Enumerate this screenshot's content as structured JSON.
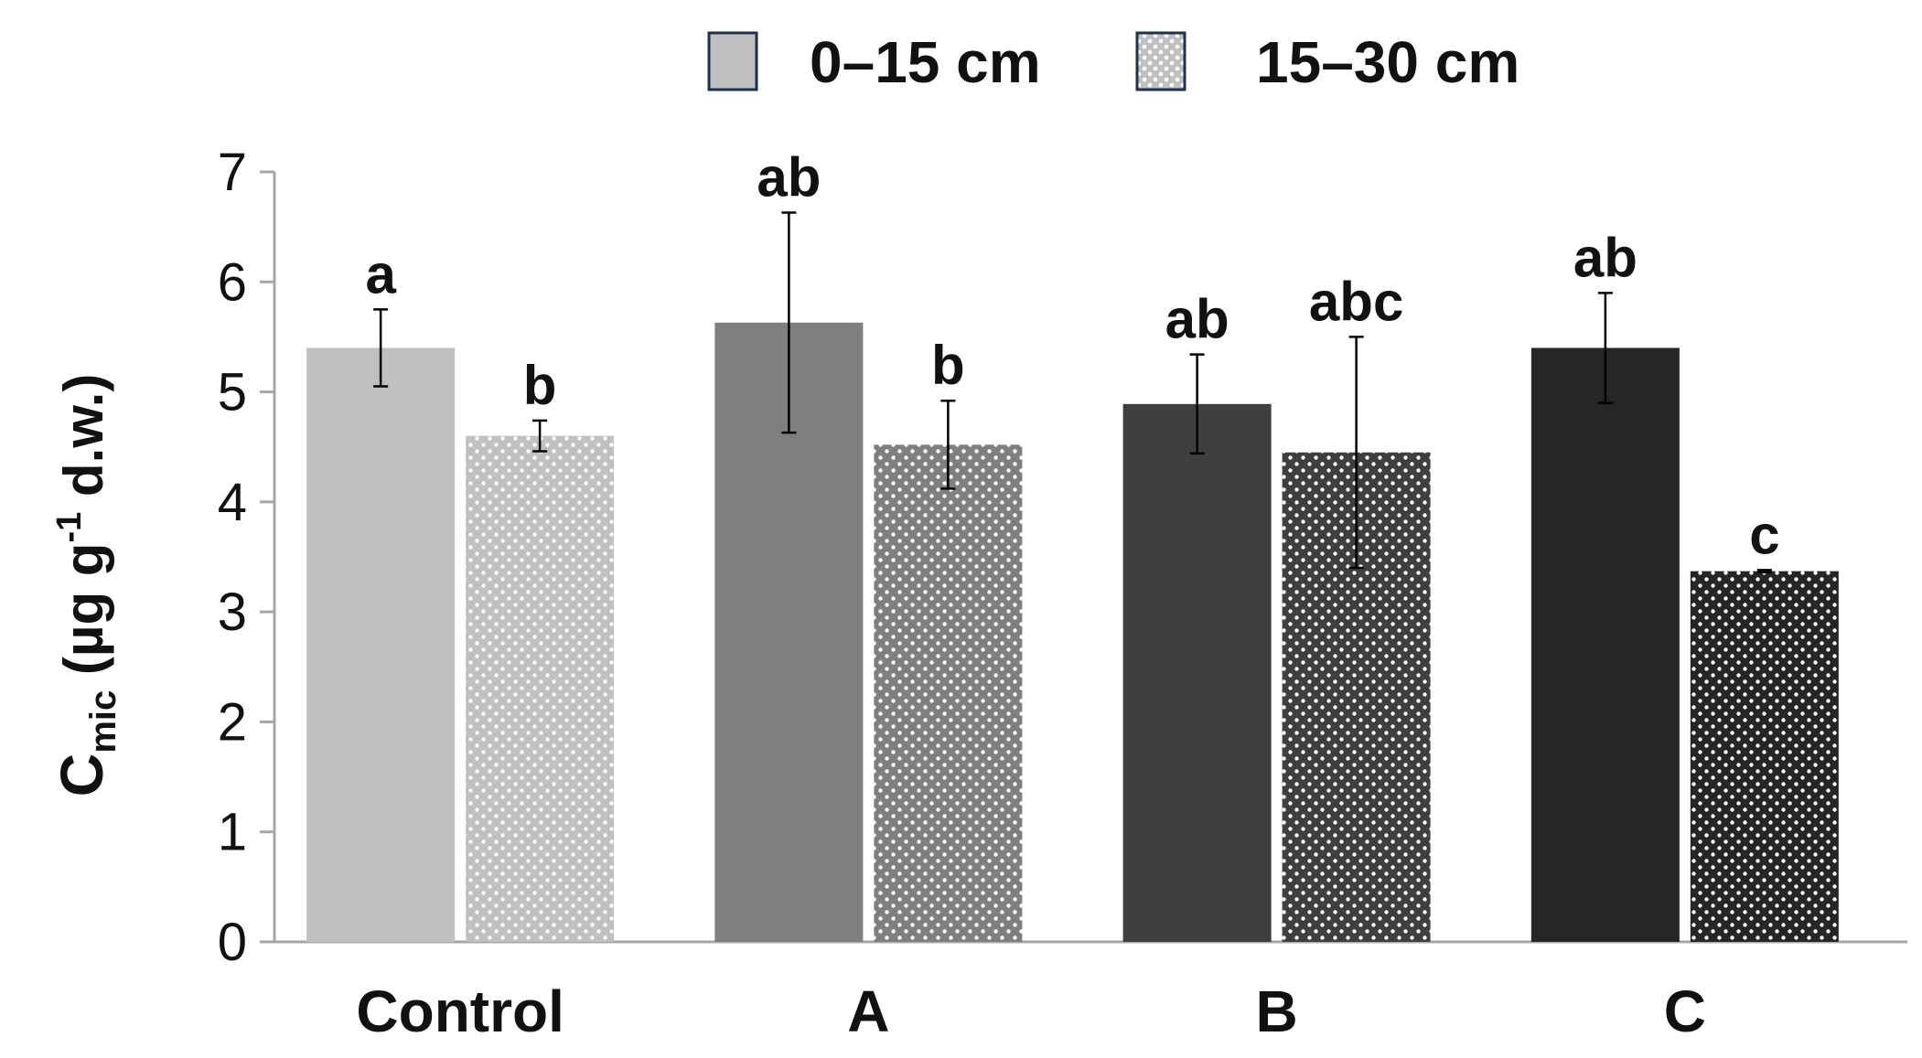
{
  "chart_data": {
    "type": "bar",
    "title": "",
    "xlabel": "",
    "ylabel": {
      "main": "C",
      "subscript": "mic",
      "unit_open": " (µg g",
      "superscript": "-1",
      "unit_close": " d.w.)"
    },
    "ylim": [
      0,
      7
    ],
    "yticks": [
      "0",
      "1",
      "2",
      "3",
      "4",
      "5",
      "6",
      "7"
    ],
    "grid": false,
    "legend_position": "top-center",
    "categories": [
      "Control",
      "A",
      "B",
      "C"
    ],
    "series": [
      {
        "name": "0–15 cm",
        "pattern": "solid",
        "values": [
          5.4,
          5.63,
          4.89,
          5.4
        ],
        "errors": [
          0.35,
          1.0,
          0.45,
          0.5
        ],
        "letters": [
          "a",
          "ab",
          "ab",
          "ab"
        ],
        "colors": [
          "#c0c0c0",
          "#7f7f7f",
          "#3f3f3f",
          "#262626"
        ]
      },
      {
        "name": "15–30 cm",
        "pattern": "dotted",
        "values": [
          4.6,
          4.52,
          4.45,
          3.37
        ],
        "errors": [
          0.14,
          0.4,
          1.05,
          0.01
        ],
        "letters": [
          "b",
          "b",
          "abc",
          "c"
        ],
        "colors": [
          "#c0c0c0",
          "#7f7f7f",
          "#3f3f3f",
          "#262626"
        ]
      }
    ],
    "legend_colors": [
      "#c0c0c0",
      "#c0c0c0"
    ],
    "legend_border": "#1f3050",
    "axis_color": "#a6a6a6",
    "errorbar_color": "#000000"
  }
}
